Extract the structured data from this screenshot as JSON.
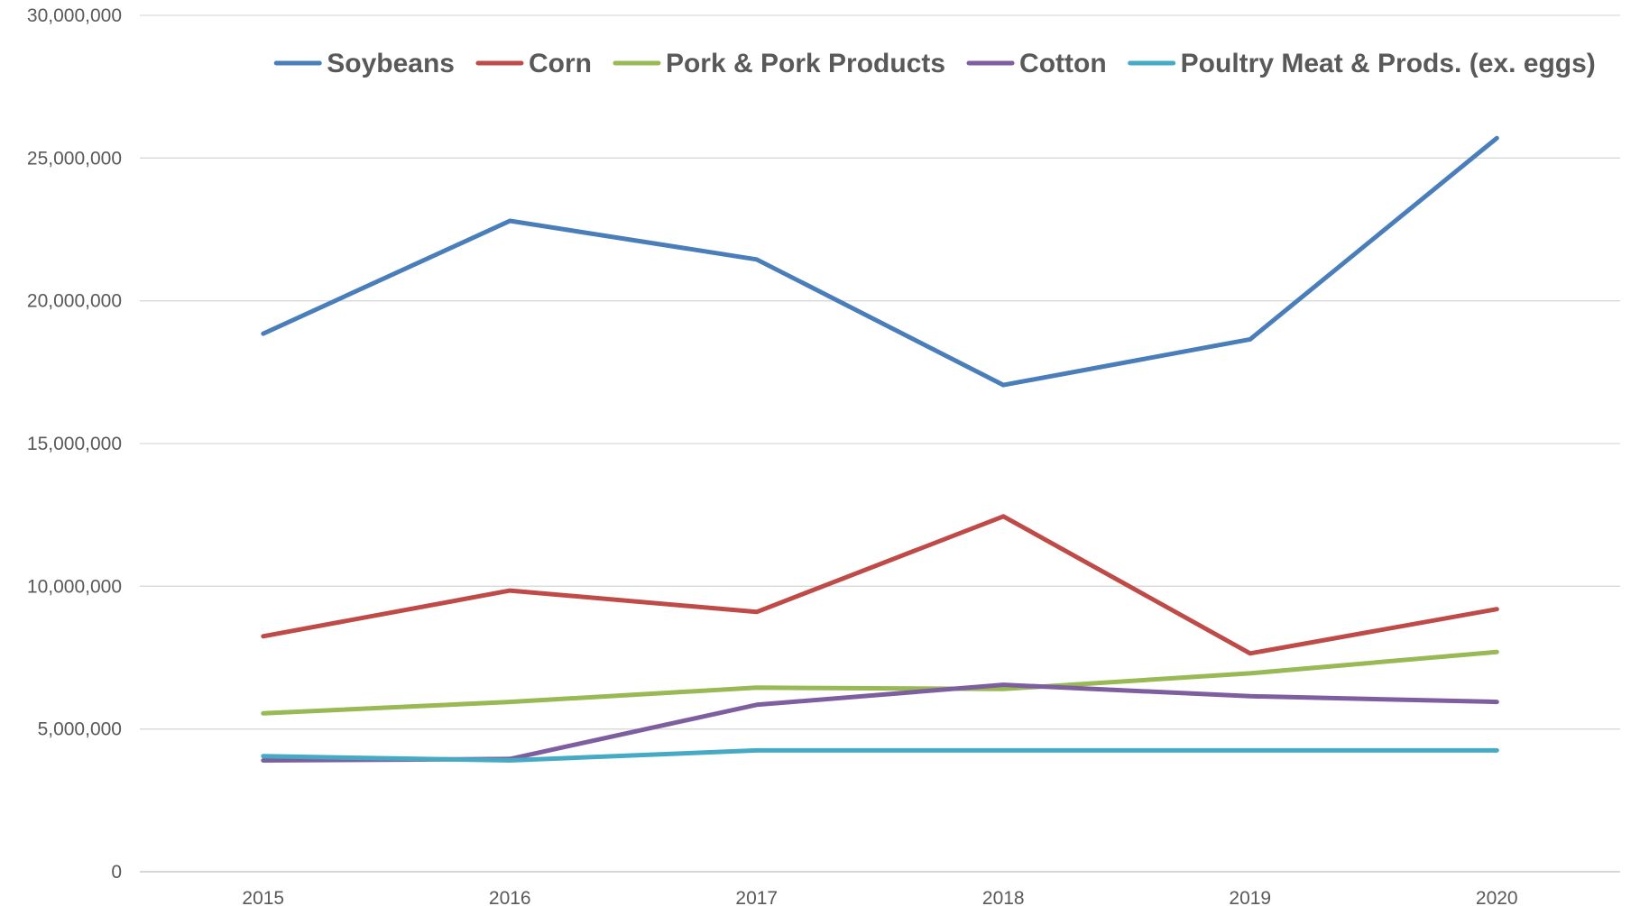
{
  "chart_data": {
    "type": "line",
    "title": "",
    "xlabel": "",
    "ylabel": "",
    "x": [
      "2015",
      "2016",
      "2017",
      "2018",
      "2019",
      "2020"
    ],
    "ylim": [
      0,
      30000000
    ],
    "y_ticks": [
      0,
      5000000,
      10000000,
      15000000,
      20000000,
      25000000,
      30000000
    ],
    "y_tick_labels": [
      "0",
      "5,000,000",
      "10,000,000",
      "15,000,000",
      "20,000,000",
      "25,000,000",
      "30,000,000"
    ],
    "grid": true,
    "legend_position": "top",
    "series": [
      {
        "name": "Soybeans",
        "color": "#4a7ebb",
        "values": [
          18850000,
          22800000,
          21450000,
          17050000,
          18650000,
          25700000
        ]
      },
      {
        "name": "Corn",
        "color": "#be4b48",
        "values": [
          8250000,
          9850000,
          9100000,
          12450000,
          7650000,
          9200000
        ]
      },
      {
        "name": "Pork & Pork Products",
        "color": "#98b954",
        "values": [
          5550000,
          5950000,
          6450000,
          6400000,
          6950000,
          7700000
        ]
      },
      {
        "name": "Cotton",
        "color": "#7d5fa0",
        "values": [
          3900000,
          3950000,
          5850000,
          6550000,
          6150000,
          5950000
        ]
      },
      {
        "name": "Poultry Meat & Prods. (ex. eggs)",
        "color": "#46aac5",
        "values": [
          4050000,
          3900000,
          4250000,
          4250000,
          4250000,
          4250000
        ]
      }
    ]
  }
}
